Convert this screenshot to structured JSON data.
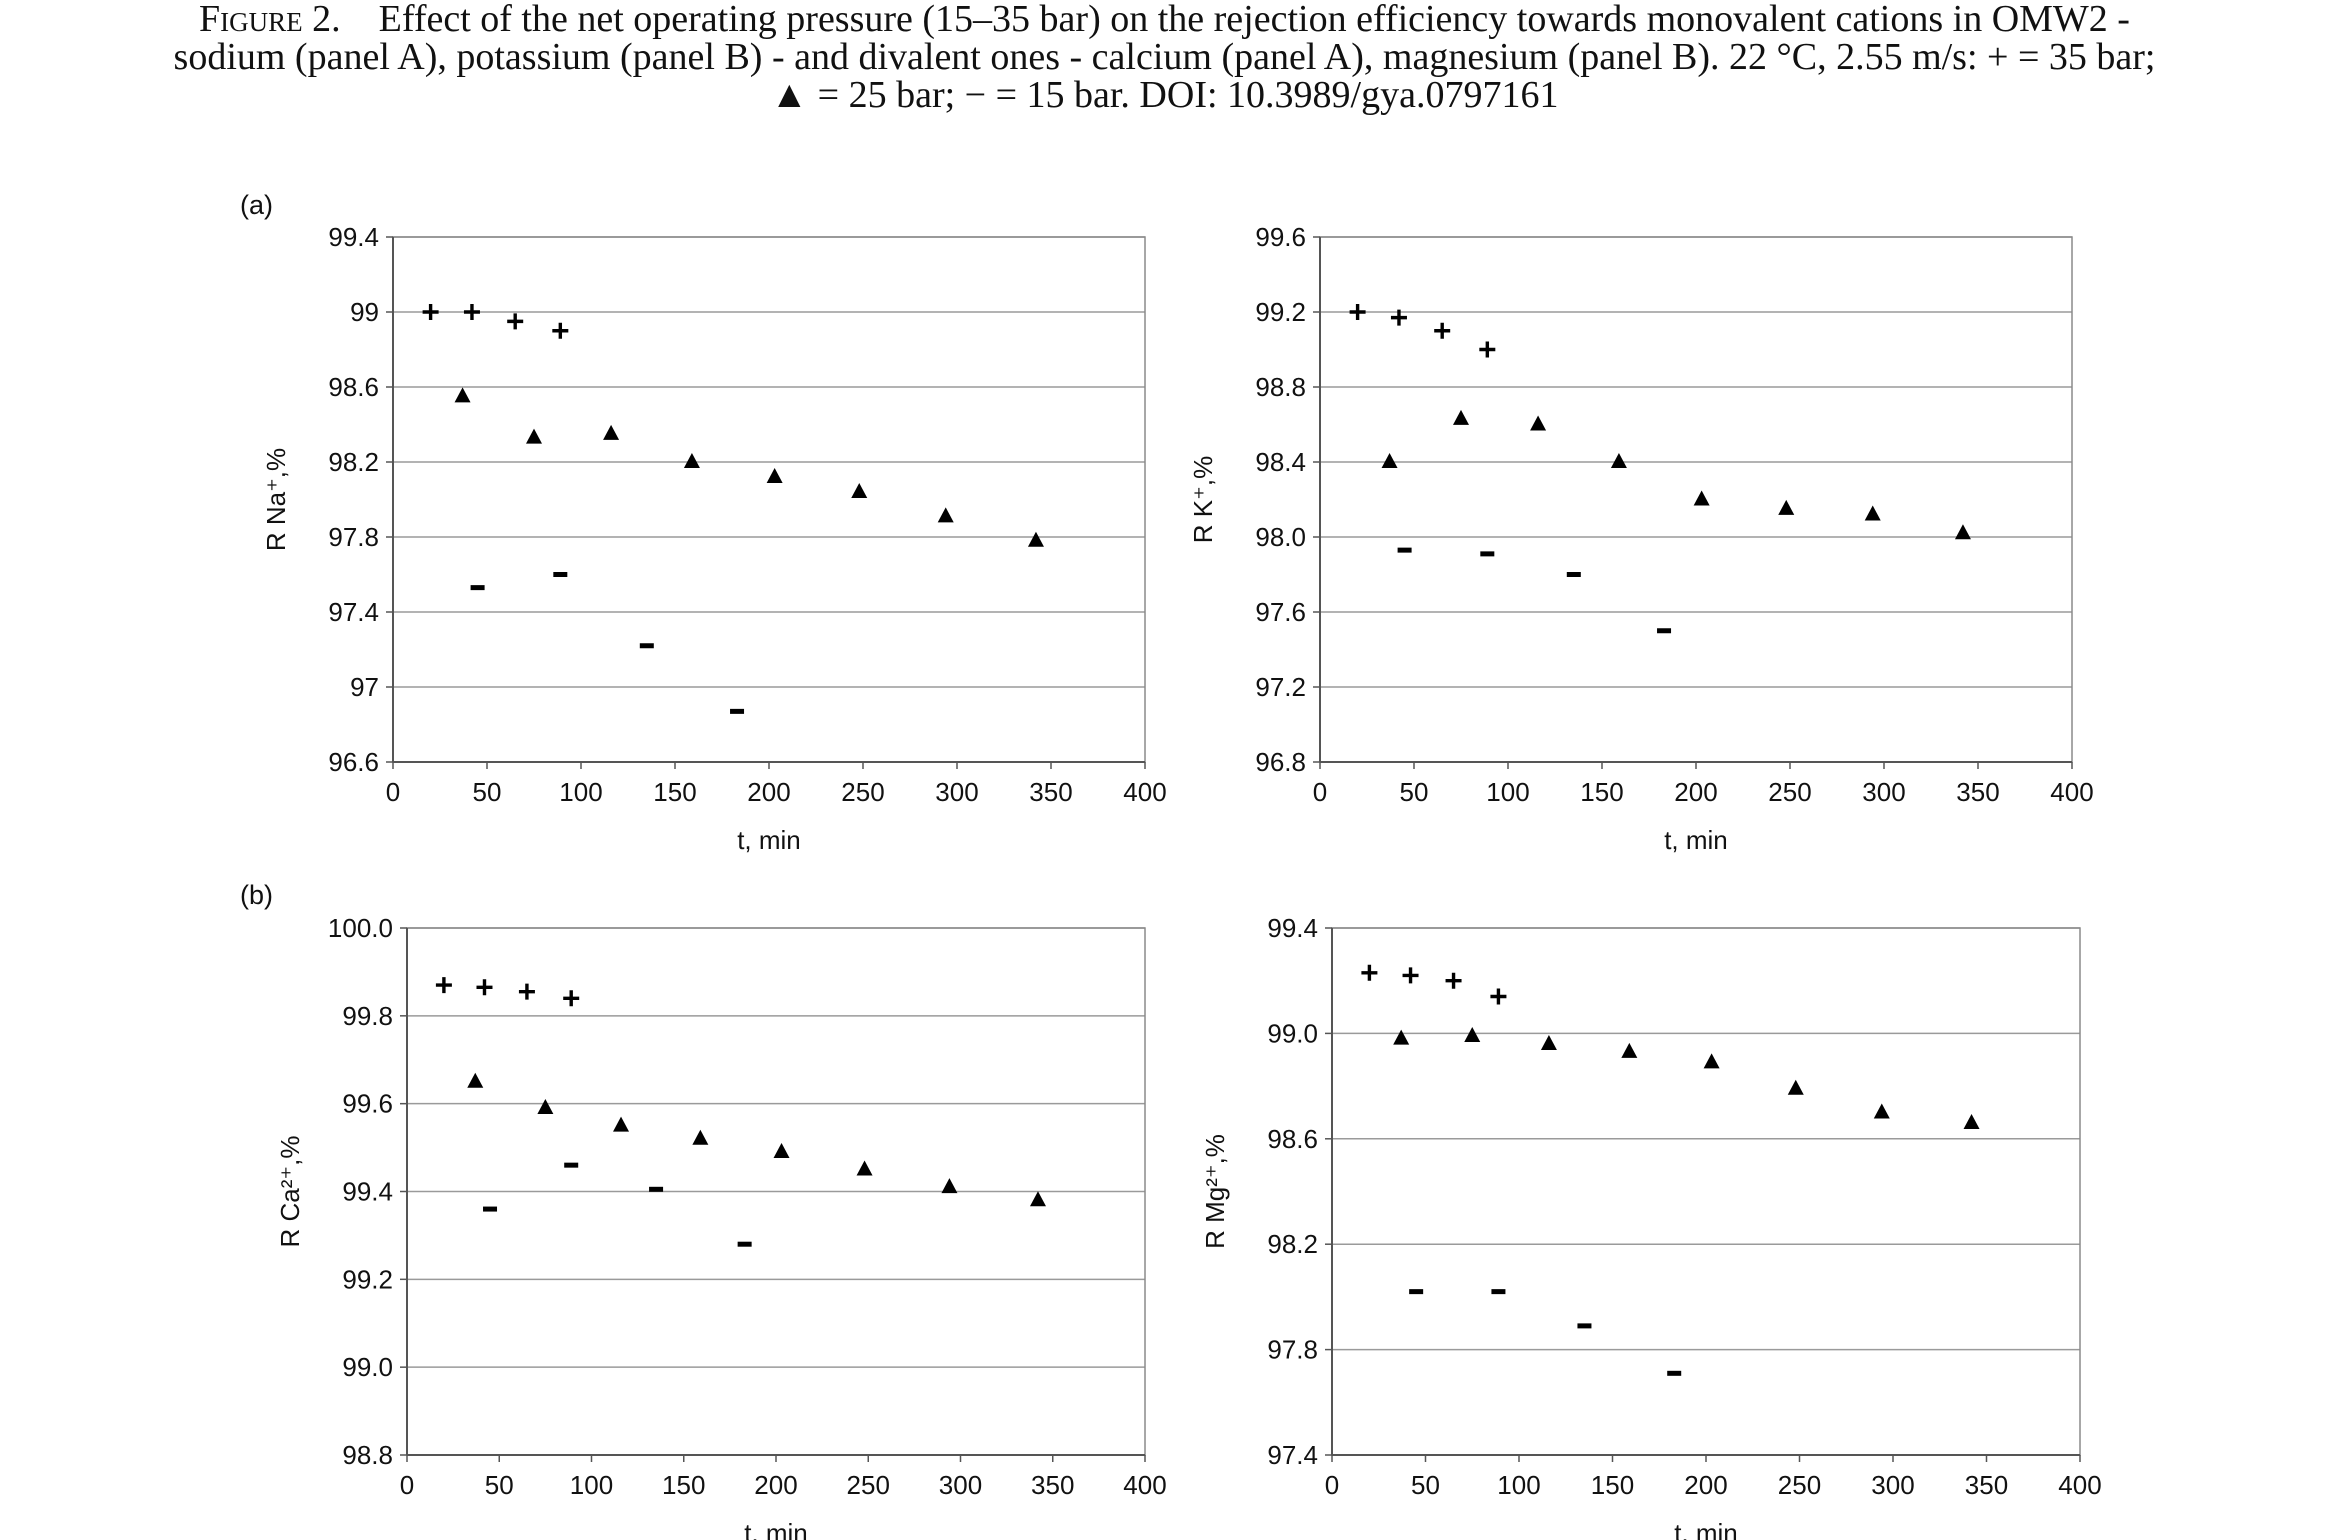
{
  "caption": {
    "label": "Figure 2.",
    "line1": "Effect of the net operating pressure (15–35 bar) on the rejection efficiency towards monovalent cations in OMW2 -",
    "line2": "sodium (panel A), potassium (panel B) - and divalent ones - calcium (panel A), magnesium (panel B). 22 °C, 2.55 m/s: + = 35 bar;",
    "line3": "▲ = 25 bar; − = 15 bar. DOI: 10.3989/gya.0797161"
  },
  "panel_labels": {
    "a": "(a)",
    "b": "(b)"
  },
  "chart_data": [
    {
      "type": "scatter",
      "ylabel": "R Na⁺,%",
      "xlabel": "t, min",
      "xlim": [
        0,
        400
      ],
      "xticks": [
        "0",
        "50",
        "100",
        "150",
        "200",
        "250",
        "300",
        "350",
        "400"
      ],
      "ylim": [
        96.6,
        99.4
      ],
      "yticks": [
        "96.6",
        "97",
        "97.4",
        "97.8",
        "98.2",
        "98.6",
        "99",
        "99.4"
      ],
      "grid": "horizontal",
      "series": [
        {
          "marker": "plus",
          "x": [
            20,
            42,
            65,
            89
          ],
          "y": [
            99.0,
            99.0,
            98.95,
            98.9
          ]
        },
        {
          "marker": "triangle",
          "x": [
            37,
            75,
            116,
            159,
            203,
            248,
            294,
            342
          ],
          "y": [
            98.55,
            98.33,
            98.35,
            98.2,
            98.12,
            98.04,
            97.91,
            97.78
          ]
        },
        {
          "marker": "dash",
          "x": [
            45,
            89,
            135,
            183
          ],
          "y": [
            97.53,
            97.6,
            97.22,
            96.87
          ]
        }
      ]
    },
    {
      "type": "scatter",
      "ylabel": "R K⁺,%",
      "xlabel": "t, min",
      "xlim": [
        0,
        400
      ],
      "xticks": [
        "0",
        "50",
        "100",
        "150",
        "200",
        "250",
        "300",
        "350",
        "400"
      ],
      "ylim": [
        96.8,
        99.6
      ],
      "yticks": [
        "96.8",
        "97.2",
        "97.6",
        "98.0",
        "98.4",
        "98.8",
        "99.2",
        "99.6"
      ],
      "grid": "horizontal",
      "series": [
        {
          "marker": "plus",
          "x": [
            20,
            42,
            65,
            89
          ],
          "y": [
            99.2,
            99.17,
            99.1,
            99.0
          ]
        },
        {
          "marker": "triangle",
          "x": [
            37,
            75,
            116,
            159,
            203,
            248,
            294,
            342
          ],
          "y": [
            98.4,
            98.63,
            98.6,
            98.4,
            98.2,
            98.15,
            98.12,
            98.02
          ]
        },
        {
          "marker": "dash",
          "x": [
            45,
            89,
            135,
            183
          ],
          "y": [
            97.93,
            97.91,
            97.8,
            97.5
          ]
        }
      ]
    },
    {
      "type": "scatter",
      "ylabel": "R Ca²⁺,%",
      "xlabel": "t, min",
      "xlim": [
        0,
        400
      ],
      "xticks": [
        "0",
        "50",
        "100",
        "150",
        "200",
        "250",
        "300",
        "350",
        "400"
      ],
      "ylim": [
        98.8,
        100.0
      ],
      "yticks": [
        "98.8",
        "99.0",
        "99.2",
        "99.4",
        "99.6",
        "99.8",
        "100.0"
      ],
      "grid": "horizontal",
      "series": [
        {
          "marker": "plus",
          "x": [
            20,
            42,
            65,
            89
          ],
          "y": [
            99.87,
            99.865,
            99.855,
            99.84
          ]
        },
        {
          "marker": "triangle",
          "x": [
            37,
            75,
            116,
            159,
            203,
            248,
            294,
            342
          ],
          "y": [
            99.65,
            99.59,
            99.55,
            99.52,
            99.49,
            99.45,
            99.41,
            99.38
          ]
        },
        {
          "marker": "dash",
          "x": [
            45,
            89,
            135,
            183
          ],
          "y": [
            99.36,
            99.46,
            99.405,
            99.28
          ]
        }
      ]
    },
    {
      "type": "scatter",
      "ylabel": "R Mg²⁺,%",
      "xlabel": "t, min",
      "xlim": [
        0,
        400
      ],
      "xticks": [
        "0",
        "50",
        "100",
        "150",
        "200",
        "250",
        "300",
        "350",
        "400"
      ],
      "ylim": [
        97.4,
        99.4
      ],
      "yticks": [
        "97.4",
        "97.8",
        "98.2",
        "98.6",
        "99.0",
        "99.4"
      ],
      "grid": "horizontal",
      "series": [
        {
          "marker": "plus",
          "x": [
            20,
            42,
            65,
            89
          ],
          "y": [
            99.23,
            99.22,
            99.2,
            99.14
          ]
        },
        {
          "marker": "triangle",
          "x": [
            37,
            75,
            116,
            159,
            203,
            248,
            294,
            342
          ],
          "y": [
            98.98,
            98.99,
            98.96,
            98.93,
            98.89,
            98.79,
            98.7,
            98.66
          ]
        },
        {
          "marker": "dash",
          "x": [
            45,
            89,
            135,
            183
          ],
          "y": [
            98.02,
            98.02,
            97.89,
            97.71
          ]
        }
      ]
    }
  ]
}
